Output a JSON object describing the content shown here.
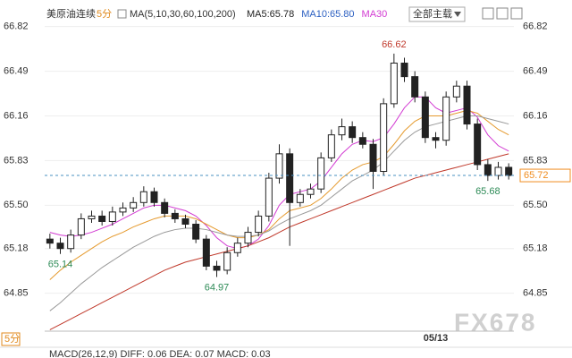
{
  "chart_data": {
    "type": "candlestick",
    "title": "美原油连续",
    "period": "5分",
    "ma_label": "MA(5,10,30,60,100,200)",
    "ma_readouts": [
      {
        "text": "MA5:65.78",
        "color": "#222222"
      },
      {
        "text": "MA10:65.80",
        "color": "#2b5fc1"
      }
    ],
    "menu_label": "全部主载",
    "bottom_period": "5分",
    "indicator_text": "MACD(26,12,9) DIFF: 0.06  DEA: 0.07  MACD: 0.03",
    "watermark": "FX678",
    "categories": [
      null,
      null,
      null,
      null,
      null,
      null,
      null,
      null,
      null,
      null,
      null,
      null,
      null,
      null,
      null,
      null,
      null,
      null,
      null,
      null,
      null,
      null,
      null,
      null,
      null,
      null,
      null,
      null,
      null,
      null,
      null,
      null,
      null,
      null,
      null,
      null,
      null,
      "05/13",
      null,
      null,
      null,
      null,
      null,
      null,
      null
    ],
    "open": [
      65.25,
      65.22,
      65.18,
      65.28,
      65.4,
      65.42,
      65.38,
      65.45,
      65.48,
      65.52,
      65.6,
      65.52,
      65.44,
      65.4,
      65.36,
      65.25,
      65.05,
      65.02,
      65.15,
      65.22,
      65.3,
      65.42,
      65.7,
      65.88,
      65.52,
      65.58,
      65.62,
      65.85,
      66.02,
      66.08,
      66.0,
      65.95,
      65.75,
      66.25,
      66.55,
      66.45,
      66.3,
      66.0,
      65.98,
      66.3,
      66.38,
      66.1,
      65.8,
      65.72,
      65.78
    ],
    "high": [
      65.29,
      65.26,
      65.32,
      65.44,
      65.46,
      65.46,
      65.49,
      65.52,
      65.56,
      65.64,
      65.63,
      65.55,
      65.47,
      65.43,
      65.39,
      65.28,
      65.09,
      65.19,
      65.26,
      65.34,
      65.46,
      65.74,
      65.95,
      65.92,
      65.62,
      65.66,
      65.89,
      66.06,
      66.14,
      66.12,
      66.04,
      65.99,
      66.29,
      66.62,
      66.59,
      66.49,
      66.34,
      66.04,
      66.34,
      66.42,
      66.42,
      66.14,
      65.84,
      65.82,
      65.81
    ],
    "low": [
      65.18,
      65.14,
      65.15,
      65.25,
      65.37,
      65.35,
      65.35,
      65.42,
      65.45,
      65.49,
      65.49,
      65.41,
      65.37,
      65.33,
      65.22,
      65.02,
      64.97,
      64.99,
      65.12,
      65.19,
      65.27,
      65.38,
      65.66,
      65.2,
      65.49,
      65.55,
      65.59,
      65.82,
      65.98,
      65.96,
      65.92,
      65.62,
      65.72,
      66.22,
      66.41,
      66.26,
      65.96,
      65.92,
      65.94,
      66.26,
      66.06,
      65.76,
      65.68,
      65.69,
      65.69
    ],
    "close": [
      65.22,
      65.18,
      65.28,
      65.4,
      65.42,
      65.38,
      65.45,
      65.48,
      65.52,
      65.6,
      65.52,
      65.44,
      65.4,
      65.36,
      65.25,
      65.05,
      65.02,
      65.15,
      65.22,
      65.3,
      65.42,
      65.7,
      65.88,
      65.52,
      65.58,
      65.62,
      65.85,
      66.02,
      66.08,
      66.0,
      65.95,
      65.75,
      66.25,
      66.55,
      66.45,
      66.3,
      66.0,
      65.98,
      66.3,
      66.38,
      66.1,
      65.8,
      65.72,
      65.78,
      65.72
    ],
    "candle_color": "#222222",
    "series": [
      {
        "name": "MA30",
        "color": "#d23ad2",
        "values": [
          65.3,
          65.28,
          65.27,
          65.28,
          65.3,
          65.33,
          65.36,
          65.4,
          65.44,
          65.48,
          65.5,
          65.5,
          65.48,
          65.46,
          65.42,
          65.35,
          65.26,
          65.2,
          65.18,
          65.2,
          65.25,
          65.35,
          65.5,
          65.58,
          65.6,
          65.62,
          65.68,
          65.78,
          65.88,
          65.95,
          65.98,
          65.97,
          66.0,
          66.1,
          66.22,
          66.3,
          66.3,
          66.22,
          66.18,
          66.2,
          66.22,
          66.15,
          66.02,
          65.94,
          65.9
        ]
      },
      {
        "color": "#e59a2e",
        "values": [
          64.95,
          65.02,
          65.08,
          65.13,
          65.18,
          65.23,
          65.27,
          65.3,
          65.34,
          65.37,
          65.4,
          65.42,
          65.42,
          65.42,
          65.4,
          65.36,
          65.32,
          65.28,
          65.26,
          65.26,
          65.28,
          65.32,
          65.4,
          65.46,
          65.48,
          65.5,
          65.55,
          65.62,
          65.7,
          65.76,
          65.8,
          65.82,
          65.86,
          65.95,
          66.05,
          66.12,
          66.16,
          66.16,
          66.16,
          66.18,
          66.2,
          66.18,
          66.12,
          66.06,
          66.02
        ]
      },
      {
        "color": "#999999",
        "values": [
          64.72,
          64.78,
          64.85,
          64.92,
          64.98,
          65.04,
          65.09,
          65.14,
          65.19,
          65.23,
          65.27,
          65.3,
          65.32,
          65.33,
          65.33,
          65.32,
          65.3,
          65.28,
          65.27,
          65.27,
          65.28,
          65.31,
          65.36,
          65.4,
          65.43,
          65.46,
          65.5,
          65.56,
          65.62,
          65.68,
          65.72,
          65.76,
          65.82,
          65.9,
          65.98,
          66.04,
          66.08,
          66.1,
          66.12,
          66.14,
          66.16,
          66.16,
          66.14,
          66.12,
          66.1
        ]
      },
      {
        "color": "#c0392b",
        "values": [
          64.58,
          64.62,
          64.66,
          64.7,
          64.74,
          64.78,
          64.82,
          64.86,
          64.9,
          64.94,
          64.98,
          65.02,
          65.05,
          65.08,
          65.1,
          65.12,
          65.14,
          65.16,
          65.18,
          65.2,
          65.23,
          65.26,
          65.3,
          65.34,
          65.37,
          65.4,
          65.43,
          65.46,
          65.49,
          65.52,
          65.55,
          65.58,
          65.61,
          65.64,
          65.67,
          65.7,
          65.72,
          65.74,
          65.76,
          65.78,
          65.8,
          65.82,
          65.84,
          65.86,
          65.88
        ]
      }
    ],
    "last_price": 65.72,
    "last_price_color": "#f08c1e",
    "ylim": [
      64.57,
      66.95
    ],
    "yticks": [
      66.82,
      66.49,
      66.16,
      65.83,
      {
        "value": 65.5,
        "label": "65.50"
      },
      65.18,
      64.85
    ],
    "grid": true
  }
}
